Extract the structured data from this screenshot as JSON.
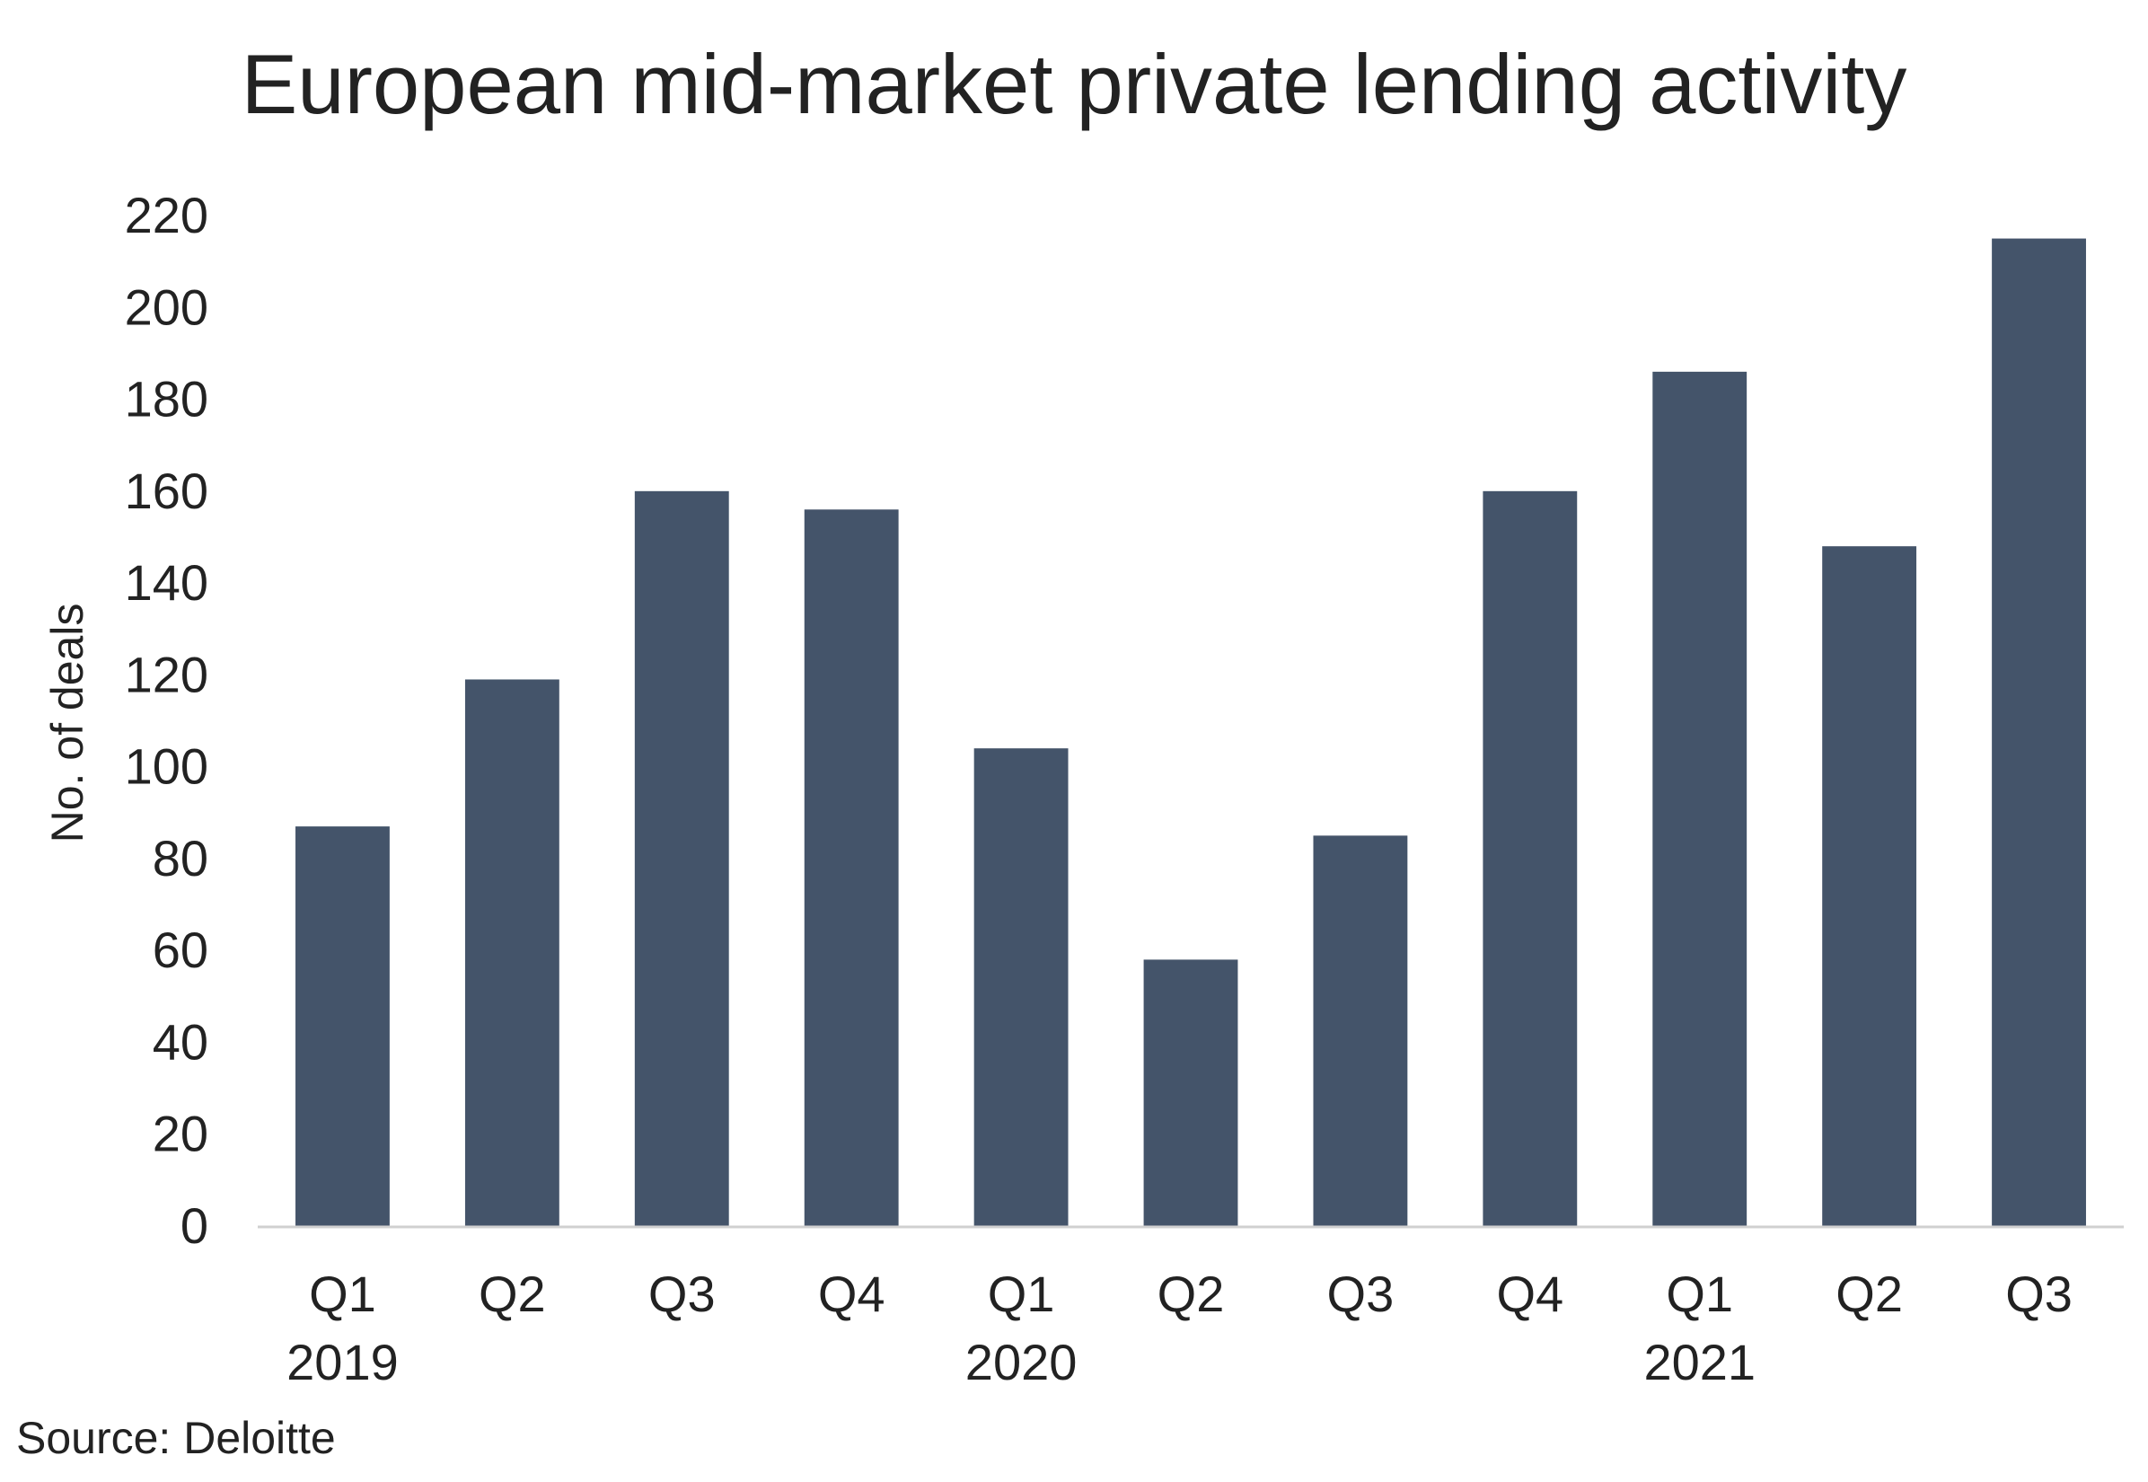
{
  "chart_data": {
    "type": "bar",
    "title": "European mid-market private lending activity",
    "xlabel": "",
    "ylabel": "No. of deals",
    "ylim": [
      0,
      220
    ],
    "yticks": [
      0,
      20,
      40,
      60,
      80,
      100,
      120,
      140,
      160,
      180,
      200,
      220
    ],
    "categories": [
      "Q1",
      "Q2",
      "Q3",
      "Q4",
      "Q1",
      "Q2",
      "Q3",
      "Q4",
      "Q1",
      "Q2",
      "Q3"
    ],
    "year_groups": [
      {
        "label": "2019",
        "category_index": 0
      },
      {
        "label": "2020",
        "category_index": 4
      },
      {
        "label": "2021",
        "category_index": 8
      }
    ],
    "values": [
      87,
      119,
      160,
      156,
      104,
      58,
      85,
      160,
      186,
      148,
      215
    ],
    "bar_color": "#44546a",
    "axis_color": "#d0d0d0",
    "grid": false,
    "legend": "none"
  },
  "source": "Source: Deloitte"
}
